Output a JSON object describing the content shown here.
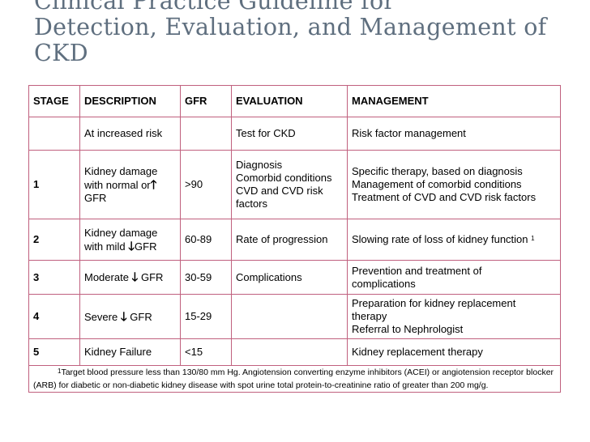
{
  "title_lines": [
    "Clinical Practice Guideline for",
    "Detection, Evaluation, and Management of",
    "CKD"
  ],
  "table": {
    "headers": {
      "stage": "STAGE",
      "description": "DESCRIPTION",
      "gfr": "GFR",
      "evaluation": "EVALUATION",
      "management": "MANAGEMENT"
    },
    "rows": [
      {
        "stage": "",
        "description": "At increased risk",
        "gfr": "",
        "evaluation": [
          "Test for CKD"
        ],
        "management": [
          "Risk factor management"
        ]
      },
      {
        "stage": "1",
        "description_lines": [
          "Kidney damage",
          "with normal or",
          "GFR"
        ],
        "description_arrow": "🡑",
        "gfr": ">90",
        "evaluation": [
          "Diagnosis",
          "Comorbid conditions",
          "CVD and CVD risk",
          "factors"
        ],
        "management": [
          "Specific therapy, based on diagnosis",
          "Management of comorbid conditions",
          "Treatment of CVD and CVD risk factors"
        ]
      },
      {
        "stage": "2",
        "description_lines": [
          "Kidney damage",
          "with mild",
          "GFR"
        ],
        "description_arrow": "🡓",
        "gfr": "60-89",
        "evaluation": [
          "Rate of progression"
        ],
        "management": [
          "Slowing rate of loss of kidney function"
        ],
        "management_sup": "1"
      },
      {
        "stage": "3",
        "description_pre": "Moderate",
        "description_arrow": "🡓",
        "description_post": "GFR",
        "gfr": "30-59",
        "evaluation": [
          "Complications"
        ],
        "management": [
          "Prevention and treatment of",
          "complications"
        ]
      },
      {
        "stage": "4",
        "description_pre": "Severe",
        "description_arrow": "🡓",
        "description_post": "GFR",
        "gfr": "15-29",
        "evaluation": [],
        "management": [
          "Preparation for kidney replacement",
          "therapy",
          "Referral to Nephrologist"
        ]
      },
      {
        "stage": "5",
        "description": "Kidney Failure",
        "gfr": "<15",
        "evaluation": [],
        "management": [
          "Kidney replacement therapy"
        ]
      }
    ],
    "footnote": {
      "marker": "1",
      "text": "Target blood pressure less than 130/80 mm Hg. Angiotension converting enzyme inhibitors (ACEI) or angiotension receptor blocker (ARB) for diabetic or non-diabetic kidney disease with spot urine total protein-to-creatinine ratio of greater than 200 mg/g."
    }
  }
}
